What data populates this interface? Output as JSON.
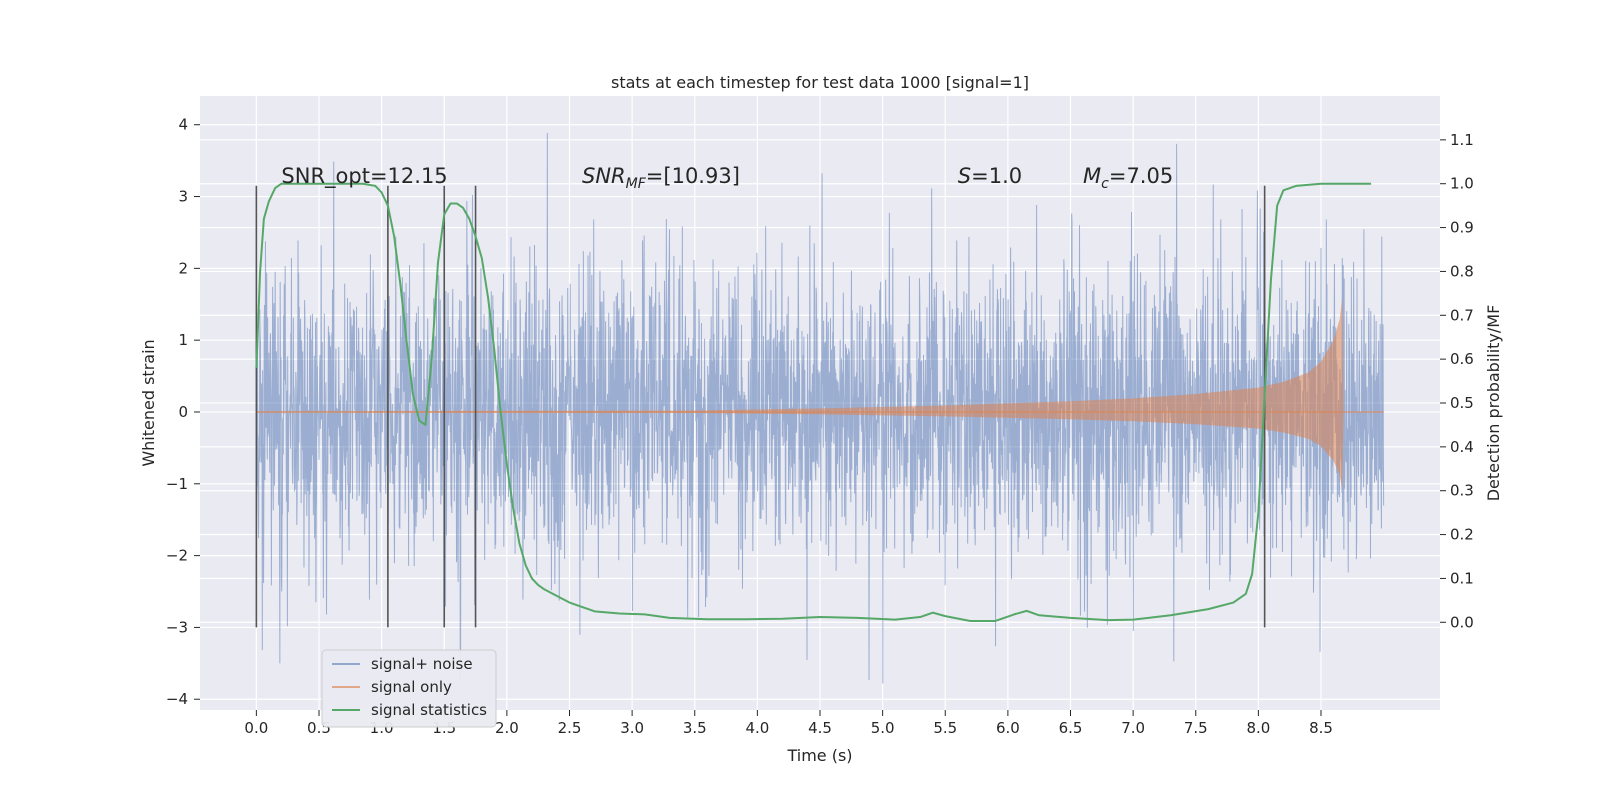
{
  "chart_data": {
    "type": "line",
    "title": "stats at each timestep for test data 1000 [signal=1]",
    "xlabel": "Time (s)",
    "ylabel": "Whitened strain",
    "y2label": "Detection probability/MF",
    "xlim": [
      -0.45,
      9.45
    ],
    "ylim": [
      -4.15,
      4.4
    ],
    "y2lim": [
      -0.2,
      1.2
    ],
    "xticks": [
      0.0,
      0.5,
      1.0,
      1.5,
      2.0,
      2.5,
      3.0,
      3.5,
      4.0,
      4.5,
      5.0,
      5.5,
      6.0,
      6.5,
      7.0,
      7.5,
      8.0,
      8.5
    ],
    "xtick_labels": [
      "0.0",
      "0.5",
      "1.0",
      "1.5",
      "2.0",
      "2.5",
      "3.0",
      "3.5",
      "4.0",
      "4.5",
      "5.0",
      "5.5",
      "6.0",
      "6.5",
      "7.0",
      "7.5",
      "8.0",
      "8.5"
    ],
    "yticks": [
      4,
      3,
      2,
      1,
      0,
      -1,
      -2,
      -3,
      -4
    ],
    "ytick_labels": [
      "4",
      "3",
      "2",
      "1",
      "0",
      "−1",
      "−2",
      "−3",
      "−4"
    ],
    "y2ticks": [
      1.1,
      1.0,
      0.9,
      0.8,
      0.7,
      0.6,
      0.5,
      0.4,
      0.3,
      0.2,
      0.1,
      0.0
    ],
    "y2tick_labels": [
      "1.1",
      "1.0",
      "0.9",
      "0.8",
      "0.7",
      "0.6",
      "0.5",
      "0.4",
      "0.3",
      "0.2",
      "0.1",
      "0.0"
    ],
    "grid": true,
    "legend_position": "lower-left",
    "series": [
      {
        "name": "signal+ noise",
        "color": "#4c72b0",
        "style": "dense noise trace",
        "x_range": [
          0.0,
          9.0
        ],
        "approx_std": 1.0,
        "approx_peak": 4.0,
        "approx_trough": -3.75
      },
      {
        "name": "signal only",
        "color": "#dd8452",
        "style": "chirp",
        "x_range": [
          0.0,
          9.0
        ],
        "merger_time": 8.67,
        "envelope": {
          "t": [
            0.0,
            3.5,
            4.5,
            5.5,
            6.5,
            7.0,
            7.5,
            8.0,
            8.2,
            8.4,
            8.5,
            8.6,
            8.65,
            8.67,
            8.7
          ],
          "amp": [
            0.01,
            0.02,
            0.05,
            0.09,
            0.15,
            0.19,
            0.25,
            0.34,
            0.42,
            0.55,
            0.7,
            1.0,
            1.3,
            1.6,
            0.0
          ]
        }
      },
      {
        "name": "signal statistics",
        "color": "#55a868",
        "axis": "right",
        "x": [
          0.0,
          0.03,
          0.06,
          0.1,
          0.15,
          0.2,
          0.3,
          0.5,
          0.7,
          0.85,
          0.95,
          1.0,
          1.05,
          1.1,
          1.15,
          1.2,
          1.25,
          1.3,
          1.35,
          1.4,
          1.45,
          1.5,
          1.55,
          1.6,
          1.65,
          1.7,
          1.75,
          1.8,
          1.85,
          1.9,
          1.95,
          2.0,
          2.05,
          2.1,
          2.15,
          2.2,
          2.25,
          2.3,
          2.4,
          2.5,
          2.7,
          2.9,
          3.1,
          3.3,
          3.6,
          3.9,
          4.2,
          4.5,
          4.8,
          5.1,
          5.3,
          5.4,
          5.5,
          5.7,
          5.9,
          6.05,
          6.15,
          6.25,
          6.5,
          6.8,
          7.0,
          7.3,
          7.6,
          7.8,
          7.9,
          7.95,
          8.0,
          8.05,
          8.1,
          8.15,
          8.2,
          8.3,
          8.5,
          8.9
        ],
        "values": [
          0.58,
          0.8,
          0.92,
          0.96,
          0.99,
          1.0,
          1.0,
          1.0,
          1.0,
          1.0,
          0.995,
          0.98,
          0.95,
          0.88,
          0.77,
          0.64,
          0.52,
          0.46,
          0.45,
          0.6,
          0.82,
          0.93,
          0.955,
          0.955,
          0.945,
          0.92,
          0.88,
          0.83,
          0.74,
          0.62,
          0.48,
          0.36,
          0.26,
          0.18,
          0.13,
          0.1,
          0.085,
          0.075,
          0.06,
          0.045,
          0.025,
          0.02,
          0.018,
          0.01,
          0.007,
          0.007,
          0.008,
          0.012,
          0.01,
          0.006,
          0.012,
          0.022,
          0.014,
          0.003,
          0.003,
          0.018,
          0.026,
          0.016,
          0.01,
          0.005,
          0.006,
          0.016,
          0.03,
          0.045,
          0.065,
          0.11,
          0.25,
          0.52,
          0.78,
          0.95,
          0.985,
          0.995,
          1.0,
          1.0
        ]
      }
    ],
    "vlines": {
      "color": "#555555",
      "x": [
        0.0,
        1.05,
        1.5,
        1.75,
        8.05
      ],
      "y_range": [
        -3.0,
        3.15
      ]
    },
    "annotations": [
      {
        "text": "SNR_opt=12.15",
        "x": 0.2,
        "y": 3.2
      },
      {
        "text_main": "SNR",
        "text_sub": "MF",
        "text_rest": "=[10.93]",
        "x": 2.6,
        "y": 3.2
      },
      {
        "text_main": "S",
        "text_rest": "=1.0",
        "x": 5.6,
        "y": 3.2
      },
      {
        "text_main": "M",
        "text_sub": "c",
        "text_rest": "=7.05",
        "x": 6.6,
        "y": 3.2
      }
    ]
  }
}
